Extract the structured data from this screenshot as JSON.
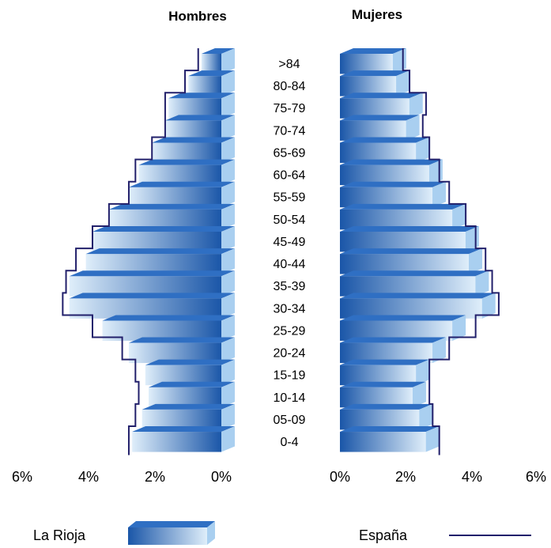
{
  "chart_data": {
    "type": "bar",
    "panels": [
      {
        "title": "Hombres",
        "axis": {
          "ticks": [
            "6%",
            "4%",
            "2%",
            "0%"
          ],
          "range": [
            0,
            6
          ]
        }
      },
      {
        "title": "Mujeres",
        "axis": {
          "ticks": [
            "0%",
            "2%",
            "4%",
            "6%"
          ],
          "range": [
            0,
            6
          ]
        }
      }
    ],
    "categories": [
      ">84",
      "80-84",
      "75-79",
      "70-74",
      "65-69",
      "60-64",
      "55-59",
      "50-54",
      "45-49",
      "40-44",
      "35-39",
      "30-34",
      "25-29",
      "20-24",
      "15-19",
      "10-14",
      "05-09",
      "0-4"
    ],
    "series": [
      {
        "name": "La Rioja",
        "style": "3d-bar",
        "hombres": [
          0.6,
          1.0,
          1.6,
          1.7,
          2.1,
          2.5,
          2.8,
          3.4,
          3.9,
          4.1,
          4.6,
          4.6,
          3.6,
          2.8,
          2.3,
          2.2,
          2.4,
          2.7
        ],
        "mujeres": [
          1.6,
          1.7,
          2.1,
          2.0,
          2.3,
          2.7,
          2.8,
          3.4,
          3.8,
          3.9,
          4.1,
          4.3,
          3.4,
          2.8,
          2.3,
          2.2,
          2.4,
          2.6
        ]
      },
      {
        "name": "España",
        "style": "line",
        "hombres": [
          0.7,
          1.1,
          1.7,
          1.7,
          2.1,
          2.6,
          2.8,
          3.4,
          3.9,
          4.4,
          4.7,
          4.8,
          3.9,
          3.0,
          2.6,
          2.5,
          2.6,
          2.8
        ],
        "mujeres": [
          1.5,
          1.7,
          2.2,
          2.1,
          2.3,
          2.6,
          2.9,
          3.4,
          3.7,
          4.0,
          4.2,
          4.4,
          3.7,
          2.9,
          2.3,
          2.3,
          2.4,
          2.6
        ]
      }
    ]
  },
  "legend": {
    "rioja_label": "La Rioja",
    "espana_label": "España"
  },
  "colors": {
    "bar_dark": "#1a56a8",
    "bar_light": "#dfeefa",
    "bar_top": "#2f6fc3",
    "bar_side": "#a9cff0",
    "line": "#22206b"
  }
}
